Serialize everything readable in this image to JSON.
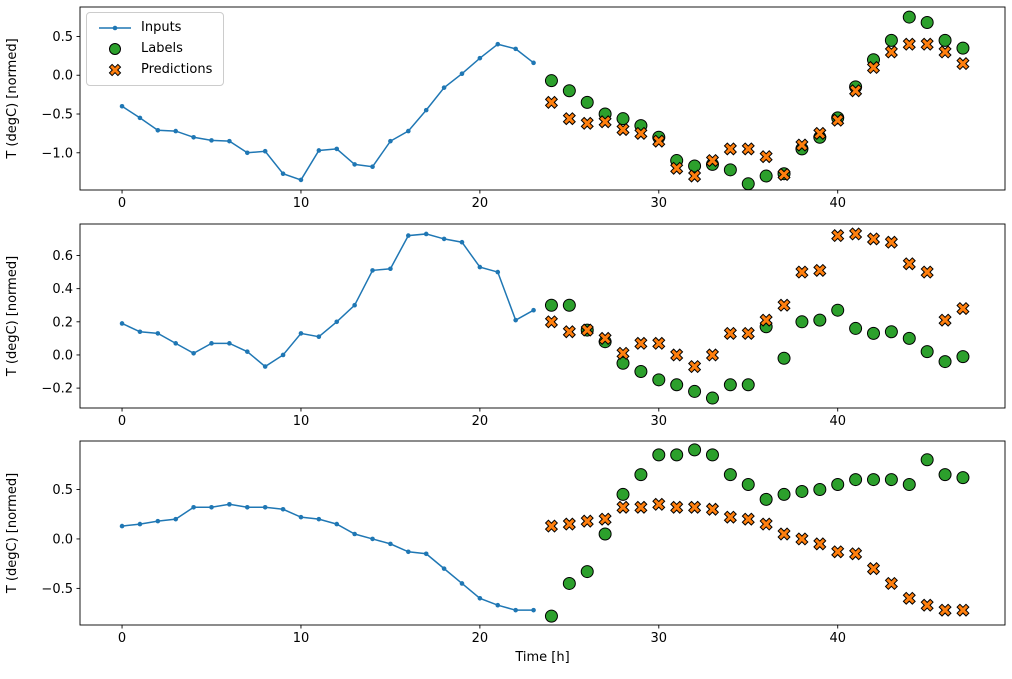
{
  "figure": {
    "xlabel": "Time [h]",
    "ylabel": "T (degC) [normed]",
    "colors": {
      "inputs": "#1f77b4",
      "labels": "#2ca02c",
      "predictions": "#ff7f0e",
      "marker_edge": "#000000",
      "axis": "#000000",
      "background": "#ffffff",
      "legend_border": "#cccccc"
    },
    "legend": {
      "position": "upper-left",
      "entries": [
        {
          "label": "Inputs",
          "marker": "line-dot",
          "color": "#1f77b4"
        },
        {
          "label": "Labels",
          "marker": "circle",
          "color": "#2ca02c"
        },
        {
          "label": "Predictions",
          "marker": "x",
          "color": "#ff7f0e"
        }
      ]
    }
  },
  "chart_data": [
    {
      "type": "line",
      "title": "",
      "ylabel": "T (degC) [normed]",
      "xlabel": "",
      "xlim": [
        -2.35,
        49.35
      ],
      "ylim": [
        -1.48,
        0.88
      ],
      "xticks": [
        0,
        10,
        20,
        30,
        40
      ],
      "yticks": [
        -1.0,
        -0.5,
        0.0,
        0.5
      ],
      "grid": false,
      "series": [
        {
          "name": "Inputs",
          "type": "line",
          "color": "#1f77b4",
          "x": [
            0,
            1,
            2,
            3,
            4,
            5,
            6,
            7,
            8,
            9,
            10,
            11,
            12,
            13,
            14,
            15,
            16,
            17,
            18,
            19,
            20,
            21,
            22,
            23
          ],
          "y": [
            -0.4,
            -0.55,
            -0.71,
            -0.72,
            -0.8,
            -0.84,
            -0.85,
            -1.0,
            -0.98,
            -1.27,
            -1.35,
            -0.97,
            -0.95,
            -1.15,
            -1.18,
            -0.85,
            -0.72,
            -0.45,
            -0.16,
            0.02,
            0.22,
            0.4,
            0.34,
            0.16
          ]
        },
        {
          "name": "Labels",
          "type": "scatter-circle",
          "color": "#2ca02c",
          "x": [
            24,
            25,
            26,
            27,
            28,
            29,
            30,
            31,
            32,
            33,
            34,
            35,
            36,
            37,
            38,
            39,
            40,
            41,
            42,
            43,
            44,
            45,
            46,
            47
          ],
          "y": [
            -0.07,
            -0.2,
            -0.35,
            -0.5,
            -0.56,
            -0.65,
            -0.8,
            -1.1,
            -1.17,
            -1.15,
            -1.22,
            -1.4,
            -1.3,
            -1.27,
            -0.95,
            -0.8,
            -0.55,
            -0.15,
            0.2,
            0.45,
            0.75,
            0.68,
            0.45,
            0.35
          ]
        },
        {
          "name": "Predictions",
          "type": "scatter-x",
          "color": "#ff7f0e",
          "x": [
            24,
            25,
            26,
            27,
            28,
            29,
            30,
            31,
            32,
            33,
            34,
            35,
            36,
            37,
            38,
            39,
            40,
            41,
            42,
            43,
            44,
            45,
            46,
            47
          ],
          "y": [
            -0.35,
            -0.56,
            -0.62,
            -0.6,
            -0.7,
            -0.75,
            -0.85,
            -1.2,
            -1.3,
            -1.1,
            -0.95,
            -0.95,
            -1.05,
            -1.28,
            -0.9,
            -0.75,
            -0.58,
            -0.2,
            0.1,
            0.3,
            0.4,
            0.4,
            0.3,
            0.15
          ]
        }
      ]
    },
    {
      "type": "line",
      "title": "",
      "ylabel": "T (degC) [normed]",
      "xlabel": "",
      "xlim": [
        -2.35,
        49.35
      ],
      "ylim": [
        -0.32,
        0.79
      ],
      "xticks": [
        0,
        10,
        20,
        30,
        40
      ],
      "yticks": [
        -0.2,
        0.0,
        0.2,
        0.4,
        0.6
      ],
      "grid": false,
      "series": [
        {
          "name": "Inputs",
          "type": "line",
          "color": "#1f77b4",
          "x": [
            0,
            1,
            2,
            3,
            4,
            5,
            6,
            7,
            8,
            9,
            10,
            11,
            12,
            13,
            14,
            15,
            16,
            17,
            18,
            19,
            20,
            21,
            22,
            23
          ],
          "y": [
            0.19,
            0.14,
            0.13,
            0.07,
            0.01,
            0.07,
            0.07,
            0.02,
            -0.07,
            0.0,
            0.13,
            0.11,
            0.2,
            0.3,
            0.51,
            0.52,
            0.72,
            0.73,
            0.7,
            0.68,
            0.53,
            0.5,
            0.21,
            0.27
          ]
        },
        {
          "name": "Labels",
          "type": "scatter-circle",
          "color": "#2ca02c",
          "x": [
            24,
            25,
            26,
            27,
            28,
            29,
            30,
            31,
            32,
            33,
            34,
            35,
            36,
            37,
            38,
            39,
            40,
            41,
            42,
            43,
            44,
            45,
            46,
            47
          ],
          "y": [
            0.3,
            0.3,
            0.15,
            0.08,
            -0.05,
            -0.1,
            -0.15,
            -0.18,
            -0.22,
            -0.26,
            -0.18,
            -0.18,
            0.17,
            -0.02,
            0.2,
            0.21,
            0.27,
            0.16,
            0.13,
            0.14,
            0.1,
            0.02,
            -0.04,
            -0.01
          ]
        },
        {
          "name": "Predictions",
          "type": "scatter-x",
          "color": "#ff7f0e",
          "x": [
            24,
            25,
            26,
            27,
            28,
            29,
            30,
            31,
            32,
            33,
            34,
            35,
            36,
            37,
            38,
            39,
            40,
            41,
            42,
            43,
            44,
            45,
            46,
            47
          ],
          "y": [
            0.2,
            0.14,
            0.15,
            0.1,
            0.01,
            0.07,
            0.07,
            0.0,
            -0.07,
            0.0,
            0.13,
            0.13,
            0.21,
            0.3,
            0.5,
            0.51,
            0.72,
            0.73,
            0.7,
            0.68,
            0.55,
            0.5,
            0.21,
            0.28
          ]
        }
      ]
    },
    {
      "type": "line",
      "title": "",
      "ylabel": "T (degC) [normed]",
      "xlabel": "Time [h]",
      "xlim": [
        -2.35,
        49.35
      ],
      "ylim": [
        -0.87,
        0.99
      ],
      "xticks": [
        0,
        10,
        20,
        30,
        40
      ],
      "yticks": [
        -0.5,
        0.0,
        0.5
      ],
      "grid": false,
      "series": [
        {
          "name": "Inputs",
          "type": "line",
          "color": "#1f77b4",
          "x": [
            0,
            1,
            2,
            3,
            4,
            5,
            6,
            7,
            8,
            9,
            10,
            11,
            12,
            13,
            14,
            15,
            16,
            17,
            18,
            19,
            20,
            21,
            22,
            23
          ],
          "y": [
            0.13,
            0.15,
            0.18,
            0.2,
            0.32,
            0.32,
            0.35,
            0.32,
            0.32,
            0.3,
            0.22,
            0.2,
            0.15,
            0.05,
            0.0,
            -0.05,
            -0.13,
            -0.15,
            -0.3,
            -0.45,
            -0.6,
            -0.67,
            -0.72,
            -0.72
          ]
        },
        {
          "name": "Labels",
          "type": "scatter-circle",
          "color": "#2ca02c",
          "x": [
            24,
            25,
            26,
            27,
            28,
            29,
            30,
            31,
            32,
            33,
            34,
            35,
            36,
            37,
            38,
            39,
            40,
            41,
            42,
            43,
            44,
            45,
            46,
            47
          ],
          "y": [
            -0.78,
            -0.45,
            -0.33,
            0.05,
            0.45,
            0.65,
            0.85,
            0.85,
            0.9,
            0.85,
            0.65,
            0.55,
            0.4,
            0.45,
            0.48,
            0.5,
            0.55,
            0.6,
            0.6,
            0.6,
            0.55,
            0.8,
            0.65,
            0.62
          ]
        },
        {
          "name": "Predictions",
          "type": "scatter-x",
          "color": "#ff7f0e",
          "x": [
            24,
            25,
            26,
            27,
            28,
            29,
            30,
            31,
            32,
            33,
            34,
            35,
            36,
            37,
            38,
            39,
            40,
            41,
            42,
            43,
            44,
            45,
            46,
            47
          ],
          "y": [
            0.13,
            0.15,
            0.18,
            0.2,
            0.32,
            0.32,
            0.35,
            0.32,
            0.32,
            0.3,
            0.22,
            0.2,
            0.15,
            0.05,
            0.0,
            -0.05,
            -0.13,
            -0.15,
            -0.3,
            -0.45,
            -0.6,
            -0.67,
            -0.72,
            -0.72
          ]
        }
      ]
    }
  ]
}
